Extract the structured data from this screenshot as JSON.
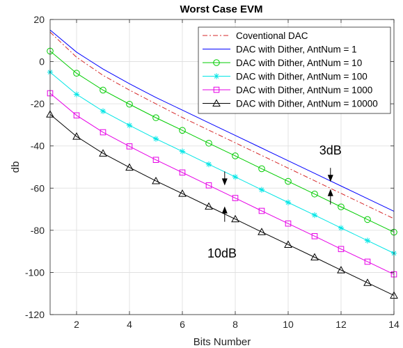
{
  "chart_data": {
    "type": "line",
    "title": "Worst Case EVM",
    "xlabel": "Bits Number",
    "ylabel": "db",
    "xlim": [
      1,
      14
    ],
    "ylim": [
      -120,
      20
    ],
    "xticks": [
      2,
      4,
      6,
      8,
      10,
      12,
      14
    ],
    "yticks": [
      -120,
      -100,
      -80,
      -60,
      -40,
      -20,
      0,
      20
    ],
    "grid": true,
    "legend_position": "top-right",
    "x": [
      1,
      2,
      3,
      4,
      5,
      6,
      7,
      8,
      9,
      10,
      11,
      12,
      13,
      14
    ],
    "series": [
      {
        "name": "Coventional DAC",
        "color": "#d62728",
        "style": "dash-dot",
        "marker": "none",
        "values": [
          14,
          2.1,
          -6.5,
          -13.5,
          -20,
          -26.5,
          -32.5,
          -38.5,
          -44.5,
          -50.5,
          -56.5,
          -62.5,
          -68.5,
          -74.5
        ]
      },
      {
        "name": "DAC with Dither, AntNum = 1",
        "color": "#0000ff",
        "style": "solid",
        "marker": "none",
        "values": [
          15,
          4.5,
          -3.5,
          -10.5,
          -17,
          -23,
          -29,
          -35,
          -41,
          -47,
          -53,
          -59,
          -65,
          -71
        ]
      },
      {
        "name": "DAC with Dither, AntNum = 10",
        "color": "#00cc00",
        "style": "solid",
        "marker": "circle",
        "values": [
          5,
          -5.5,
          -13.5,
          -20.2,
          -26.6,
          -32.6,
          -38.7,
          -44.7,
          -50.8,
          -56.8,
          -62.8,
          -68.9,
          -74.9,
          -80.9
        ]
      },
      {
        "name": "DAC with Dither, AntNum = 100",
        "color": "#00e5e5",
        "style": "solid",
        "marker": "asterisk",
        "values": [
          -5,
          -15.5,
          -23.5,
          -30.2,
          -36.6,
          -42.6,
          -48.7,
          -54.7,
          -60.8,
          -66.8,
          -72.8,
          -78.9,
          -84.9,
          -90.9
        ]
      },
      {
        "name": "DAC with Dither, AntNum = 1000",
        "color": "#e600e6",
        "style": "solid",
        "marker": "square",
        "values": [
          -15,
          -25.5,
          -33.5,
          -40.2,
          -46.6,
          -52.6,
          -58.7,
          -64.7,
          -70.8,
          -76.8,
          -82.8,
          -88.9,
          -94.9,
          -100.9
        ]
      },
      {
        "name": "DAC with Dither, AntNum = 10000",
        "color": "#000000",
        "style": "solid",
        "marker": "triangle",
        "values": [
          -25,
          -35.5,
          -43.5,
          -50.2,
          -56.6,
          -62.6,
          -68.7,
          -74.7,
          -80.8,
          -86.8,
          -92.8,
          -98.9,
          -104.9,
          -110.9
        ]
      }
    ],
    "annotations": [
      {
        "text": "3dB",
        "arrow_x": 11.6,
        "arrow_top": -57,
        "arrow_bottom": -60.5,
        "text_x": 11.6,
        "text_y": -44
      },
      {
        "text": "10dB",
        "arrow_x": 7.6,
        "arrow_top": -58.7,
        "arrow_bottom": -68.7,
        "text_x": 7.5,
        "text_y": -93
      }
    ]
  }
}
